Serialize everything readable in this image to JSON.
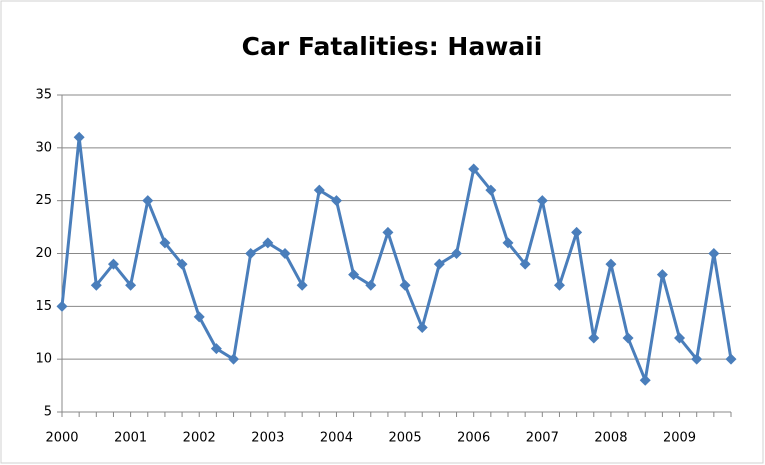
{
  "chart_data": {
    "type": "line",
    "title": "Car Fatalities: Hawaii",
    "categories": [
      "2000",
      null,
      null,
      null,
      "2001",
      null,
      null,
      null,
      "2002",
      null,
      null,
      null,
      "2003",
      null,
      null,
      null,
      "2004",
      null,
      null,
      null,
      "2005",
      null,
      null,
      null,
      "2006",
      null,
      null,
      null,
      "2007",
      null,
      null,
      null,
      "2008",
      null,
      null,
      null,
      "2009",
      null,
      null,
      null
    ],
    "series": [
      {
        "color": "#4a7ebb",
        "values": [
          15,
          31,
          17,
          19,
          17,
          25,
          21,
          19,
          14,
          11,
          10,
          20,
          21,
          20,
          17,
          26,
          25,
          18,
          17,
          22,
          17,
          13,
          19,
          20,
          28,
          26,
          21,
          19,
          25,
          17,
          22,
          12,
          19,
          12,
          8,
          18,
          12,
          10,
          20,
          10
        ]
      }
    ],
    "ylim": [
      5,
      35
    ],
    "yticks": [
      5,
      10,
      15,
      20,
      25,
      30,
      35
    ],
    "grid": true
  }
}
